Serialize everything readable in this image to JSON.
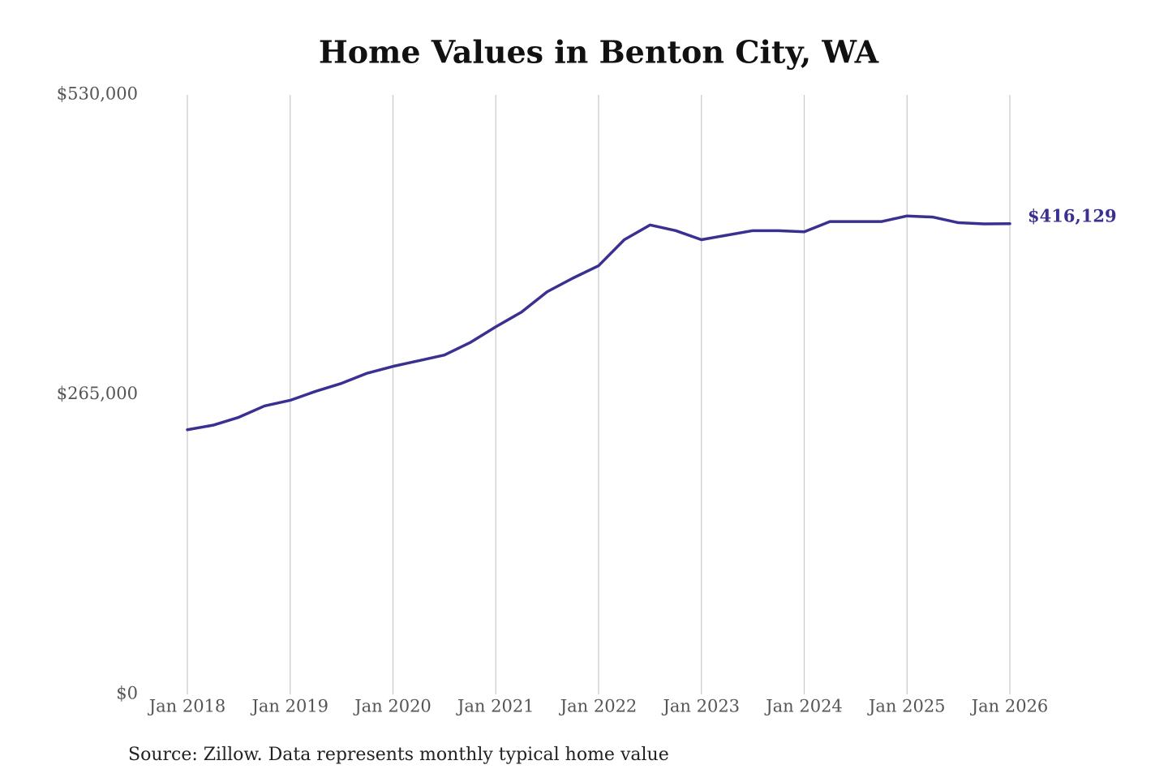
{
  "chart_data": {
    "type": "line",
    "title": "Home Values in Benton City, WA",
    "source": "Source: Zillow. Data represents monthly typical home value",
    "x": [
      2018,
      2018.25,
      2018.5,
      2018.75,
      2019,
      2019.25,
      2019.5,
      2019.75,
      2020,
      2020.25,
      2020.5,
      2020.75,
      2021,
      2021.25,
      2021.5,
      2021.75,
      2022,
      2022.25,
      2022.5,
      2022.75,
      2023,
      2023.25,
      2023.5,
      2023.75,
      2024,
      2024.25,
      2024.5,
      2024.75,
      2025,
      2025.25,
      2025.5,
      2025.75,
      2026
    ],
    "series": [
      {
        "name": "Home value",
        "color": "#3a3091",
        "values": [
          234000,
          238000,
          245000,
          255000,
          260000,
          268000,
          275000,
          284000,
          290000,
          295000,
          300000,
          311000,
          325000,
          338000,
          356000,
          368000,
          379000,
          402000,
          415000,
          410000,
          402000,
          406000,
          410000,
          410000,
          409000,
          418000,
          418000,
          418000,
          423000,
          422000,
          417000,
          416000,
          416129
        ],
        "value_labels": [
          null,
          null,
          null,
          null,
          null,
          null,
          null,
          null,
          null,
          null,
          null,
          null,
          null,
          null,
          null,
          null,
          null,
          null,
          null,
          null,
          null,
          null,
          null,
          null,
          null,
          null,
          null,
          null,
          null,
          null,
          null,
          null,
          "$416,129"
        ]
      }
    ],
    "xlim": [
      2018,
      2026
    ],
    "xticks": [
      {
        "value": 2018,
        "label": "Jan 2018"
      },
      {
        "value": 2019,
        "label": "Jan 2019"
      },
      {
        "value": 2020,
        "label": "Jan 2020"
      },
      {
        "value": 2021,
        "label": "Jan 2021"
      },
      {
        "value": 2022,
        "label": "Jan 2022"
      },
      {
        "value": 2023,
        "label": "Jan 2023"
      },
      {
        "value": 2024,
        "label": "Jan 2024"
      },
      {
        "value": 2025,
        "label": "Jan 2025"
      },
      {
        "value": 2026,
        "label": "Jan 2026"
      }
    ],
    "ylim": [
      0,
      530000
    ],
    "yticks": [
      {
        "value": 0,
        "label": "$0"
      },
      {
        "value": 265000,
        "label": "$265,000"
      },
      {
        "value": 530000,
        "label": "$530,000"
      }
    ],
    "grid": "x"
  }
}
